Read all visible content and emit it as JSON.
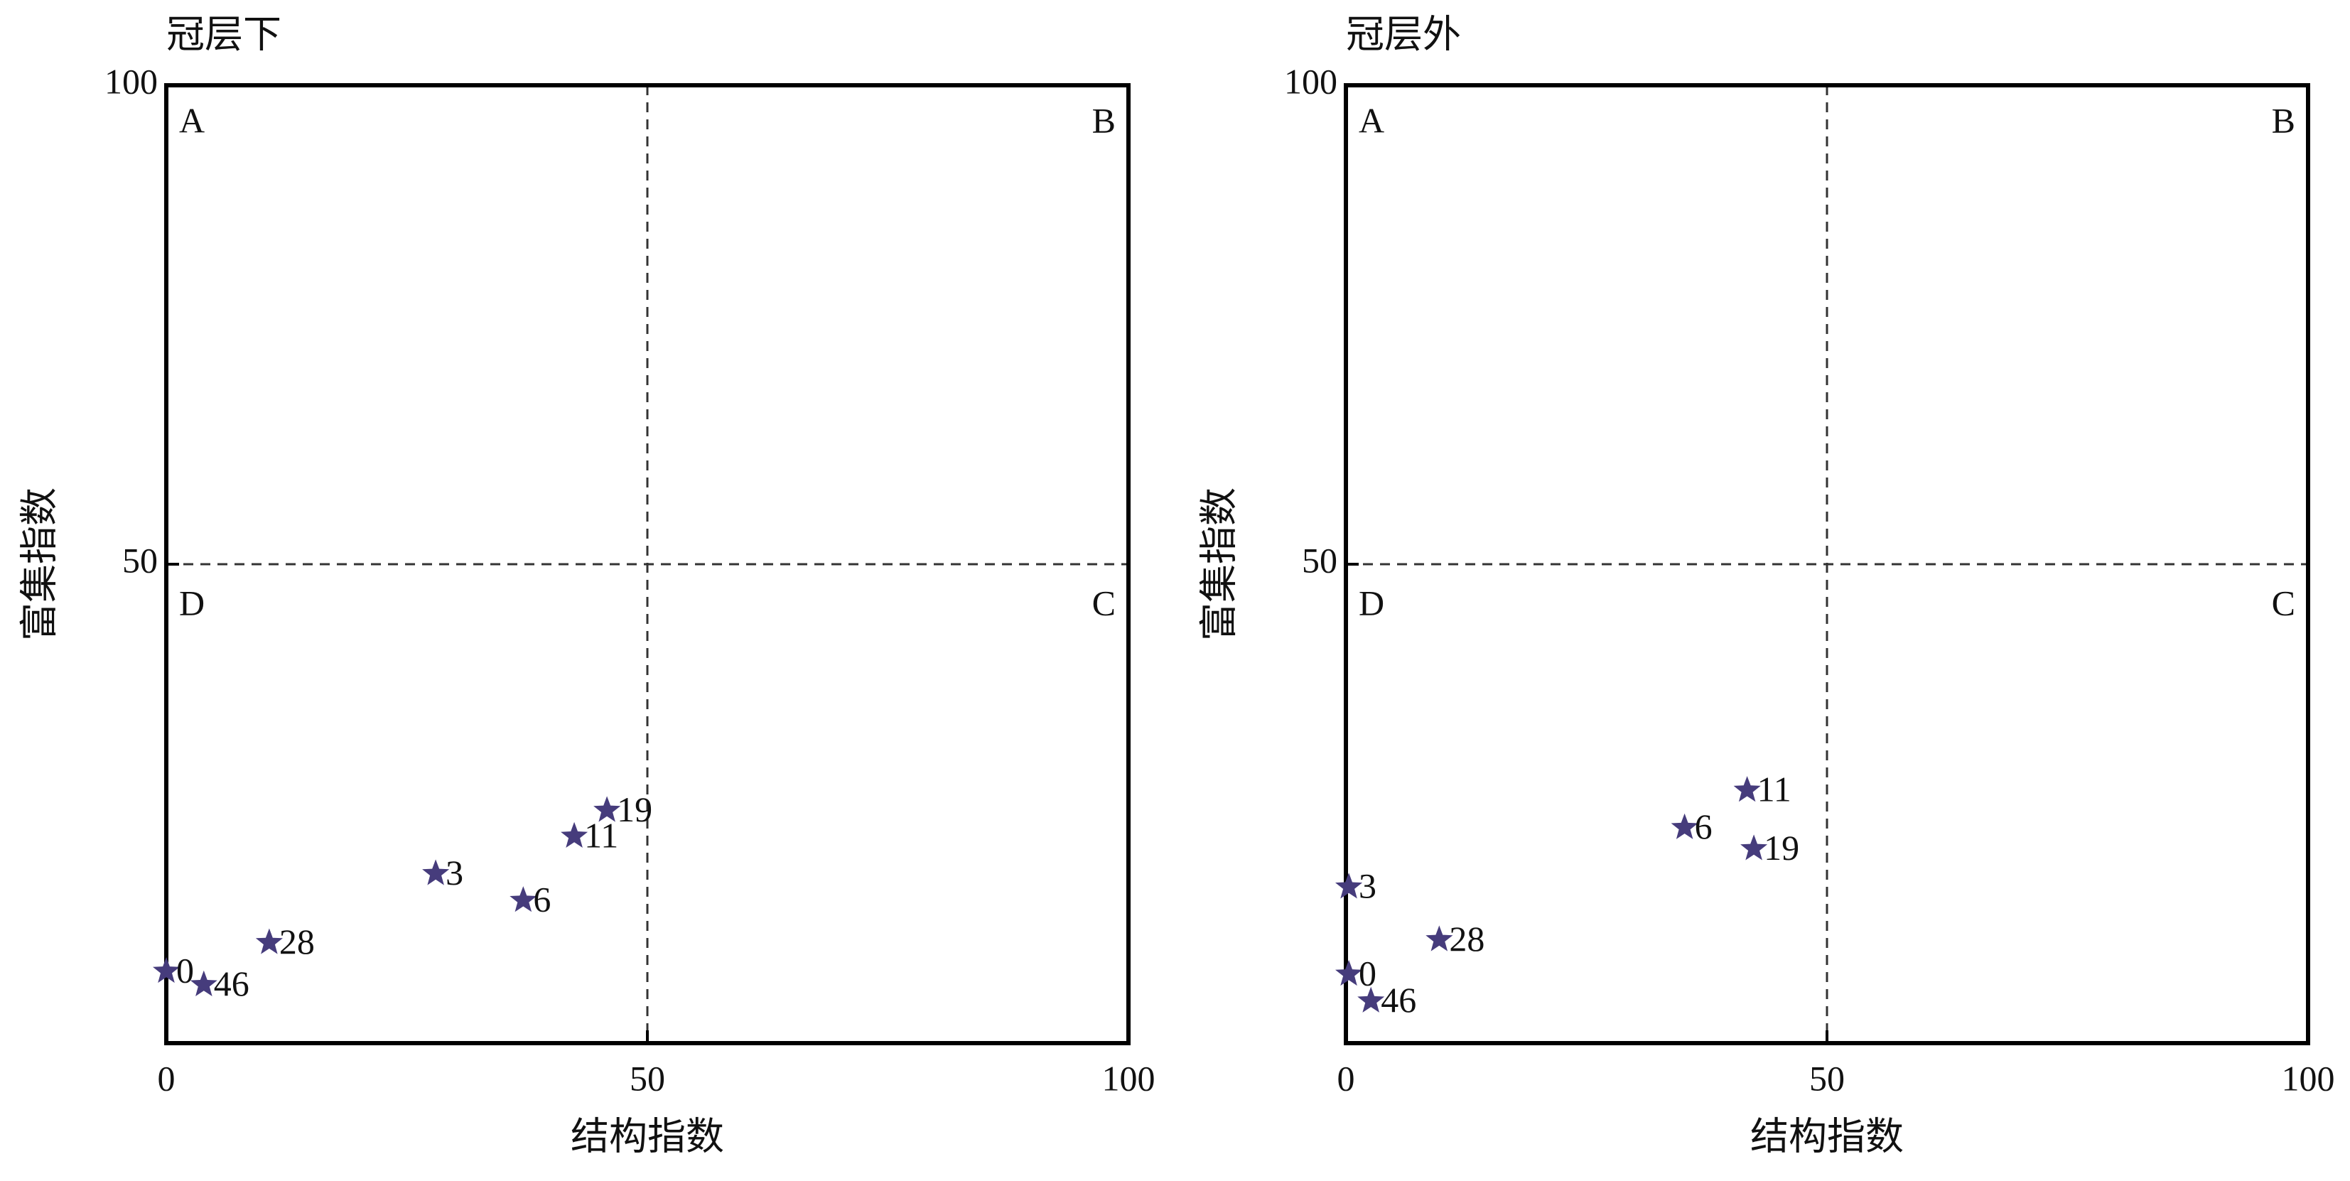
{
  "chart_data": [
    {
      "type": "scatter",
      "title": "冠层下",
      "x_label": "结构指数",
      "y_label": "富集指数",
      "x": [
        0,
        3.9,
        10.7,
        28.0,
        37.1,
        42.4,
        45.8
      ],
      "values": [
        7.5,
        6.1,
        10.5,
        17.7,
        14.9,
        21.6,
        24.3
      ],
      "point_labels": [
        "0",
        "46",
        "28",
        "3",
        "6",
        "11",
        "19"
      ],
      "color": "#463c7c",
      "xlim": [
        0,
        100
      ],
      "xticks": [
        0,
        50,
        100
      ],
      "ylim": [
        0,
        100
      ],
      "yticks": [
        50,
        100
      ],
      "quadrant_lines": [
        50,
        50
      ],
      "annotations": [
        "A",
        "B",
        "C",
        "D"
      ]
    },
    {
      "type": "scatter",
      "title": "冠层外",
      "x_label": "结构指数",
      "y_label": "富集指数",
      "x": [
        0.3,
        9.7,
        0.3,
        2.6,
        35.2,
        41.7,
        42.4
      ],
      "values": [
        16.3,
        10.8,
        7.2,
        4.4,
        22.5,
        26.4,
        20.3
      ],
      "point_labels": [
        "3",
        "28",
        "0",
        "46",
        "6",
        "11",
        "19"
      ],
      "color": "#463c7c",
      "xlim": [
        0,
        100
      ],
      "xticks": [
        0,
        50,
        100
      ],
      "ylim": [
        0,
        100
      ],
      "yticks": [
        50,
        100
      ],
      "quadrant_lines": [
        50,
        50
      ],
      "annotations": [
        "A",
        "B",
        "C",
        "D"
      ]
    }
  ]
}
